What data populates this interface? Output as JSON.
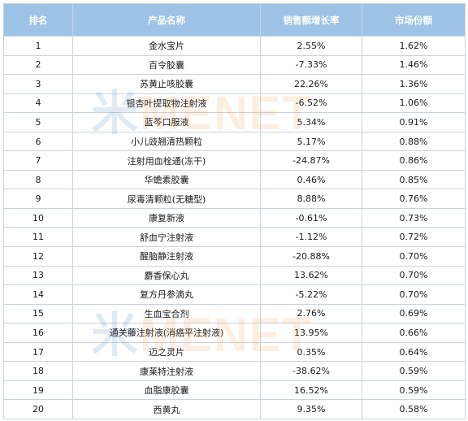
{
  "table": {
    "headers": [
      "排名",
      "产品名称",
      "销售额增长率",
      "市场份额"
    ],
    "rows": [
      {
        "rank": "1",
        "name": "金水宝片",
        "growth": "2.55%",
        "share": "1.62%"
      },
      {
        "rank": "2",
        "name": "百令胶囊",
        "growth": "-7.33%",
        "share": "1.46%"
      },
      {
        "rank": "3",
        "name": "苏黄止咳胶囊",
        "growth": "22.26%",
        "share": "1.36%"
      },
      {
        "rank": "4",
        "name": "银杏叶提取物注射液",
        "growth": "-6.52%",
        "share": "1.06%"
      },
      {
        "rank": "5",
        "name": "蓝芩口服液",
        "growth": "5.34%",
        "share": "0.91%"
      },
      {
        "rank": "6",
        "name": "小儿豉翘清热颗粒",
        "growth": "5.17%",
        "share": "0.88%"
      },
      {
        "rank": "7",
        "name": "注射用血栓通(冻干)",
        "growth": "-24.87%",
        "share": "0.86%"
      },
      {
        "rank": "8",
        "name": "华蟾素胶囊",
        "growth": "0.46%",
        "share": "0.85%"
      },
      {
        "rank": "9",
        "name": "尿毒清颗粒(无糖型)",
        "growth": "8.88%",
        "share": "0.76%"
      },
      {
        "rank": "10",
        "name": "康复新液",
        "growth": "-0.61%",
        "share": "0.73%"
      },
      {
        "rank": "11",
        "name": "舒血宁注射液",
        "growth": "-1.12%",
        "share": "0.72%"
      },
      {
        "rank": "12",
        "name": "醒脑静注射液",
        "growth": "-20.88%",
        "share": "0.70%"
      },
      {
        "rank": "13",
        "name": "麝香保心丸",
        "growth": "13.62%",
        "share": "0.70%"
      },
      {
        "rank": "14",
        "name": "复方丹参滴丸",
        "growth": "-5.22%",
        "share": "0.70%"
      },
      {
        "rank": "15",
        "name": "生血宝合剂",
        "growth": "2.76%",
        "share": "0.69%"
      },
      {
        "rank": "16",
        "name": "通关藤注射液(消癌平注射液)",
        "growth": "13.95%",
        "share": "0.66%"
      },
      {
        "rank": "17",
        "name": "迈之灵片",
        "growth": "0.35%",
        "share": "0.64%"
      },
      {
        "rank": "18",
        "name": "康莱特注射液",
        "growth": "-38.62%",
        "share": "0.59%"
      },
      {
        "rank": "19",
        "name": "血脂康胶囊",
        "growth": "16.52%",
        "share": "0.59%"
      },
      {
        "rank": "20",
        "name": "西黄丸",
        "growth": "9.35%",
        "share": "0.58%"
      }
    ]
  },
  "watermark": {
    "part_a": "米",
    "part_b": "MENET"
  }
}
